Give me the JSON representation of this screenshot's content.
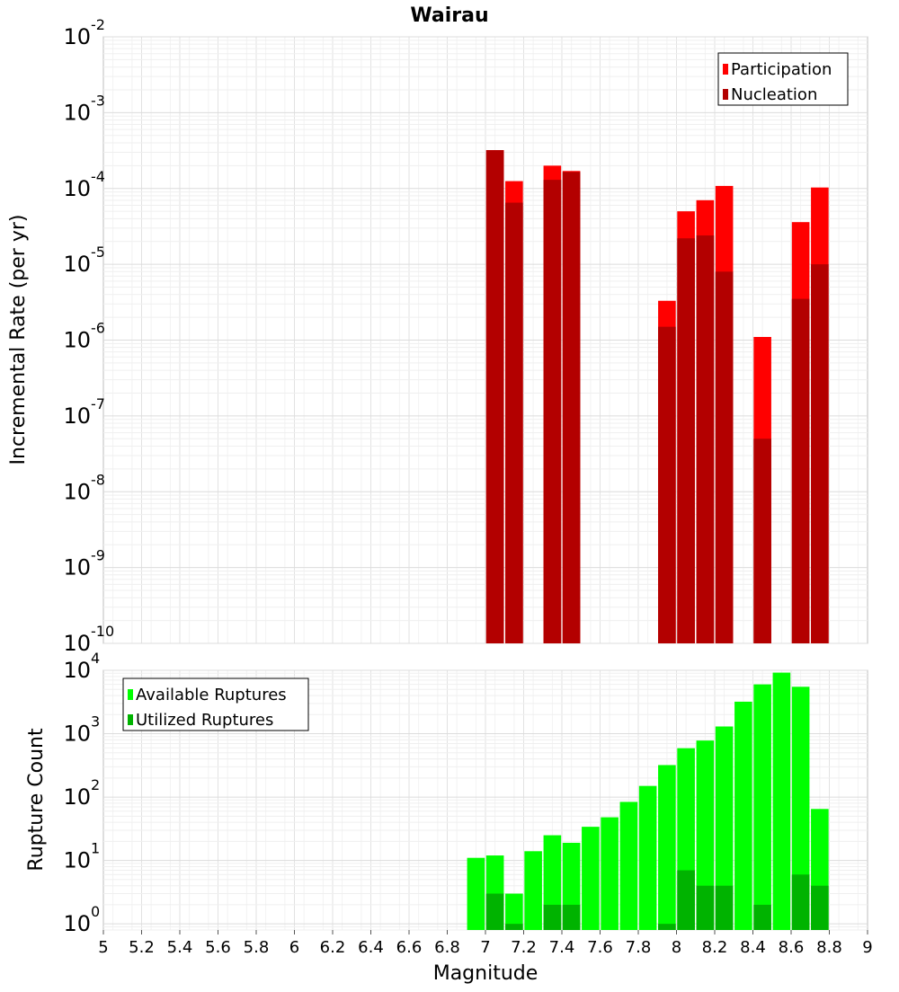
{
  "chart_data": [
    {
      "type": "bar",
      "title": "Wairau",
      "ylabel": "Incremental Rate (per yr)",
      "yscale": "log",
      "ylim": [
        1e-10,
        0.01
      ],
      "xlim": [
        5,
        9
      ],
      "y_tick_bases": [
        "10",
        "10",
        "10",
        "10",
        "10",
        "10",
        "10",
        "10",
        "10"
      ],
      "y_tick_exps": [
        "-10",
        "-9",
        "-8",
        "-7",
        "-6",
        "-5",
        "-4",
        "-3",
        "-2"
      ],
      "legend_position": "top-right",
      "legend": [
        {
          "label": "Participation",
          "color": "#ff0000"
        },
        {
          "label": "Nucleation",
          "color": "#b30000"
        }
      ],
      "x": [
        7.05,
        7.15,
        7.35,
        7.45,
        7.95,
        8.05,
        8.15,
        8.25,
        8.45,
        8.65,
        8.75
      ],
      "series": [
        {
          "name": "Participation",
          "color": "#ff0000",
          "values": [
            0.00032,
            0.000125,
            0.0002,
            0.00017,
            3.3e-06,
            5e-05,
            7e-05,
            0.000108,
            1.1e-06,
            3.6e-05,
            0.000103
          ]
        },
        {
          "name": "Nucleation",
          "color": "#b30000",
          "values": [
            0.00032,
            6.5e-05,
            0.00013,
            0.000165,
            1.5e-06,
            2.2e-05,
            2.4e-05,
            8e-06,
            5e-08,
            3.5e-06,
            1e-05
          ]
        }
      ]
    },
    {
      "type": "bar",
      "xlabel": "Magnitude",
      "ylabel": "Rupture Count",
      "yscale": "log",
      "ylim": [
        0.8,
        10000
      ],
      "xlim": [
        5,
        9
      ],
      "x_ticks": [
        "5",
        "5.2",
        "5.4",
        "5.6",
        "5.8",
        "6",
        "6.2",
        "6.4",
        "6.6",
        "6.8",
        "7",
        "7.2",
        "7.4",
        "7.6",
        "7.8",
        "8",
        "8.2",
        "8.4",
        "8.6",
        "8.8",
        "9"
      ],
      "y_tick_bases": [
        "10",
        "10",
        "10",
        "10",
        "10"
      ],
      "y_tick_exps": [
        "0",
        "1",
        "2",
        "3",
        "4"
      ],
      "legend_position": "top-left",
      "legend": [
        {
          "label": "Available Ruptures",
          "color": "#00ff00"
        },
        {
          "label": "Utilized Ruptures",
          "color": "#00b300"
        }
      ],
      "x": [
        6.95,
        7.05,
        7.15,
        7.25,
        7.35,
        7.45,
        7.55,
        7.65,
        7.75,
        7.85,
        7.95,
        8.05,
        8.15,
        8.25,
        8.35,
        8.45,
        8.55,
        8.65,
        8.75
      ],
      "series": [
        {
          "name": "Available Ruptures",
          "color": "#00ff00",
          "values": [
            11,
            12,
            3,
            14,
            25,
            19,
            34,
            48,
            84,
            150,
            320,
            590,
            780,
            1300,
            3200,
            6000,
            9200,
            5500,
            65
          ]
        },
        {
          "name": "Utilized Ruptures",
          "color": "#00b300",
          "values": [
            0,
            3,
            1,
            0,
            2,
            2,
            0,
            0,
            0,
            0,
            1,
            7,
            4,
            4,
            0,
            2,
            0,
            6,
            4
          ]
        }
      ]
    }
  ]
}
